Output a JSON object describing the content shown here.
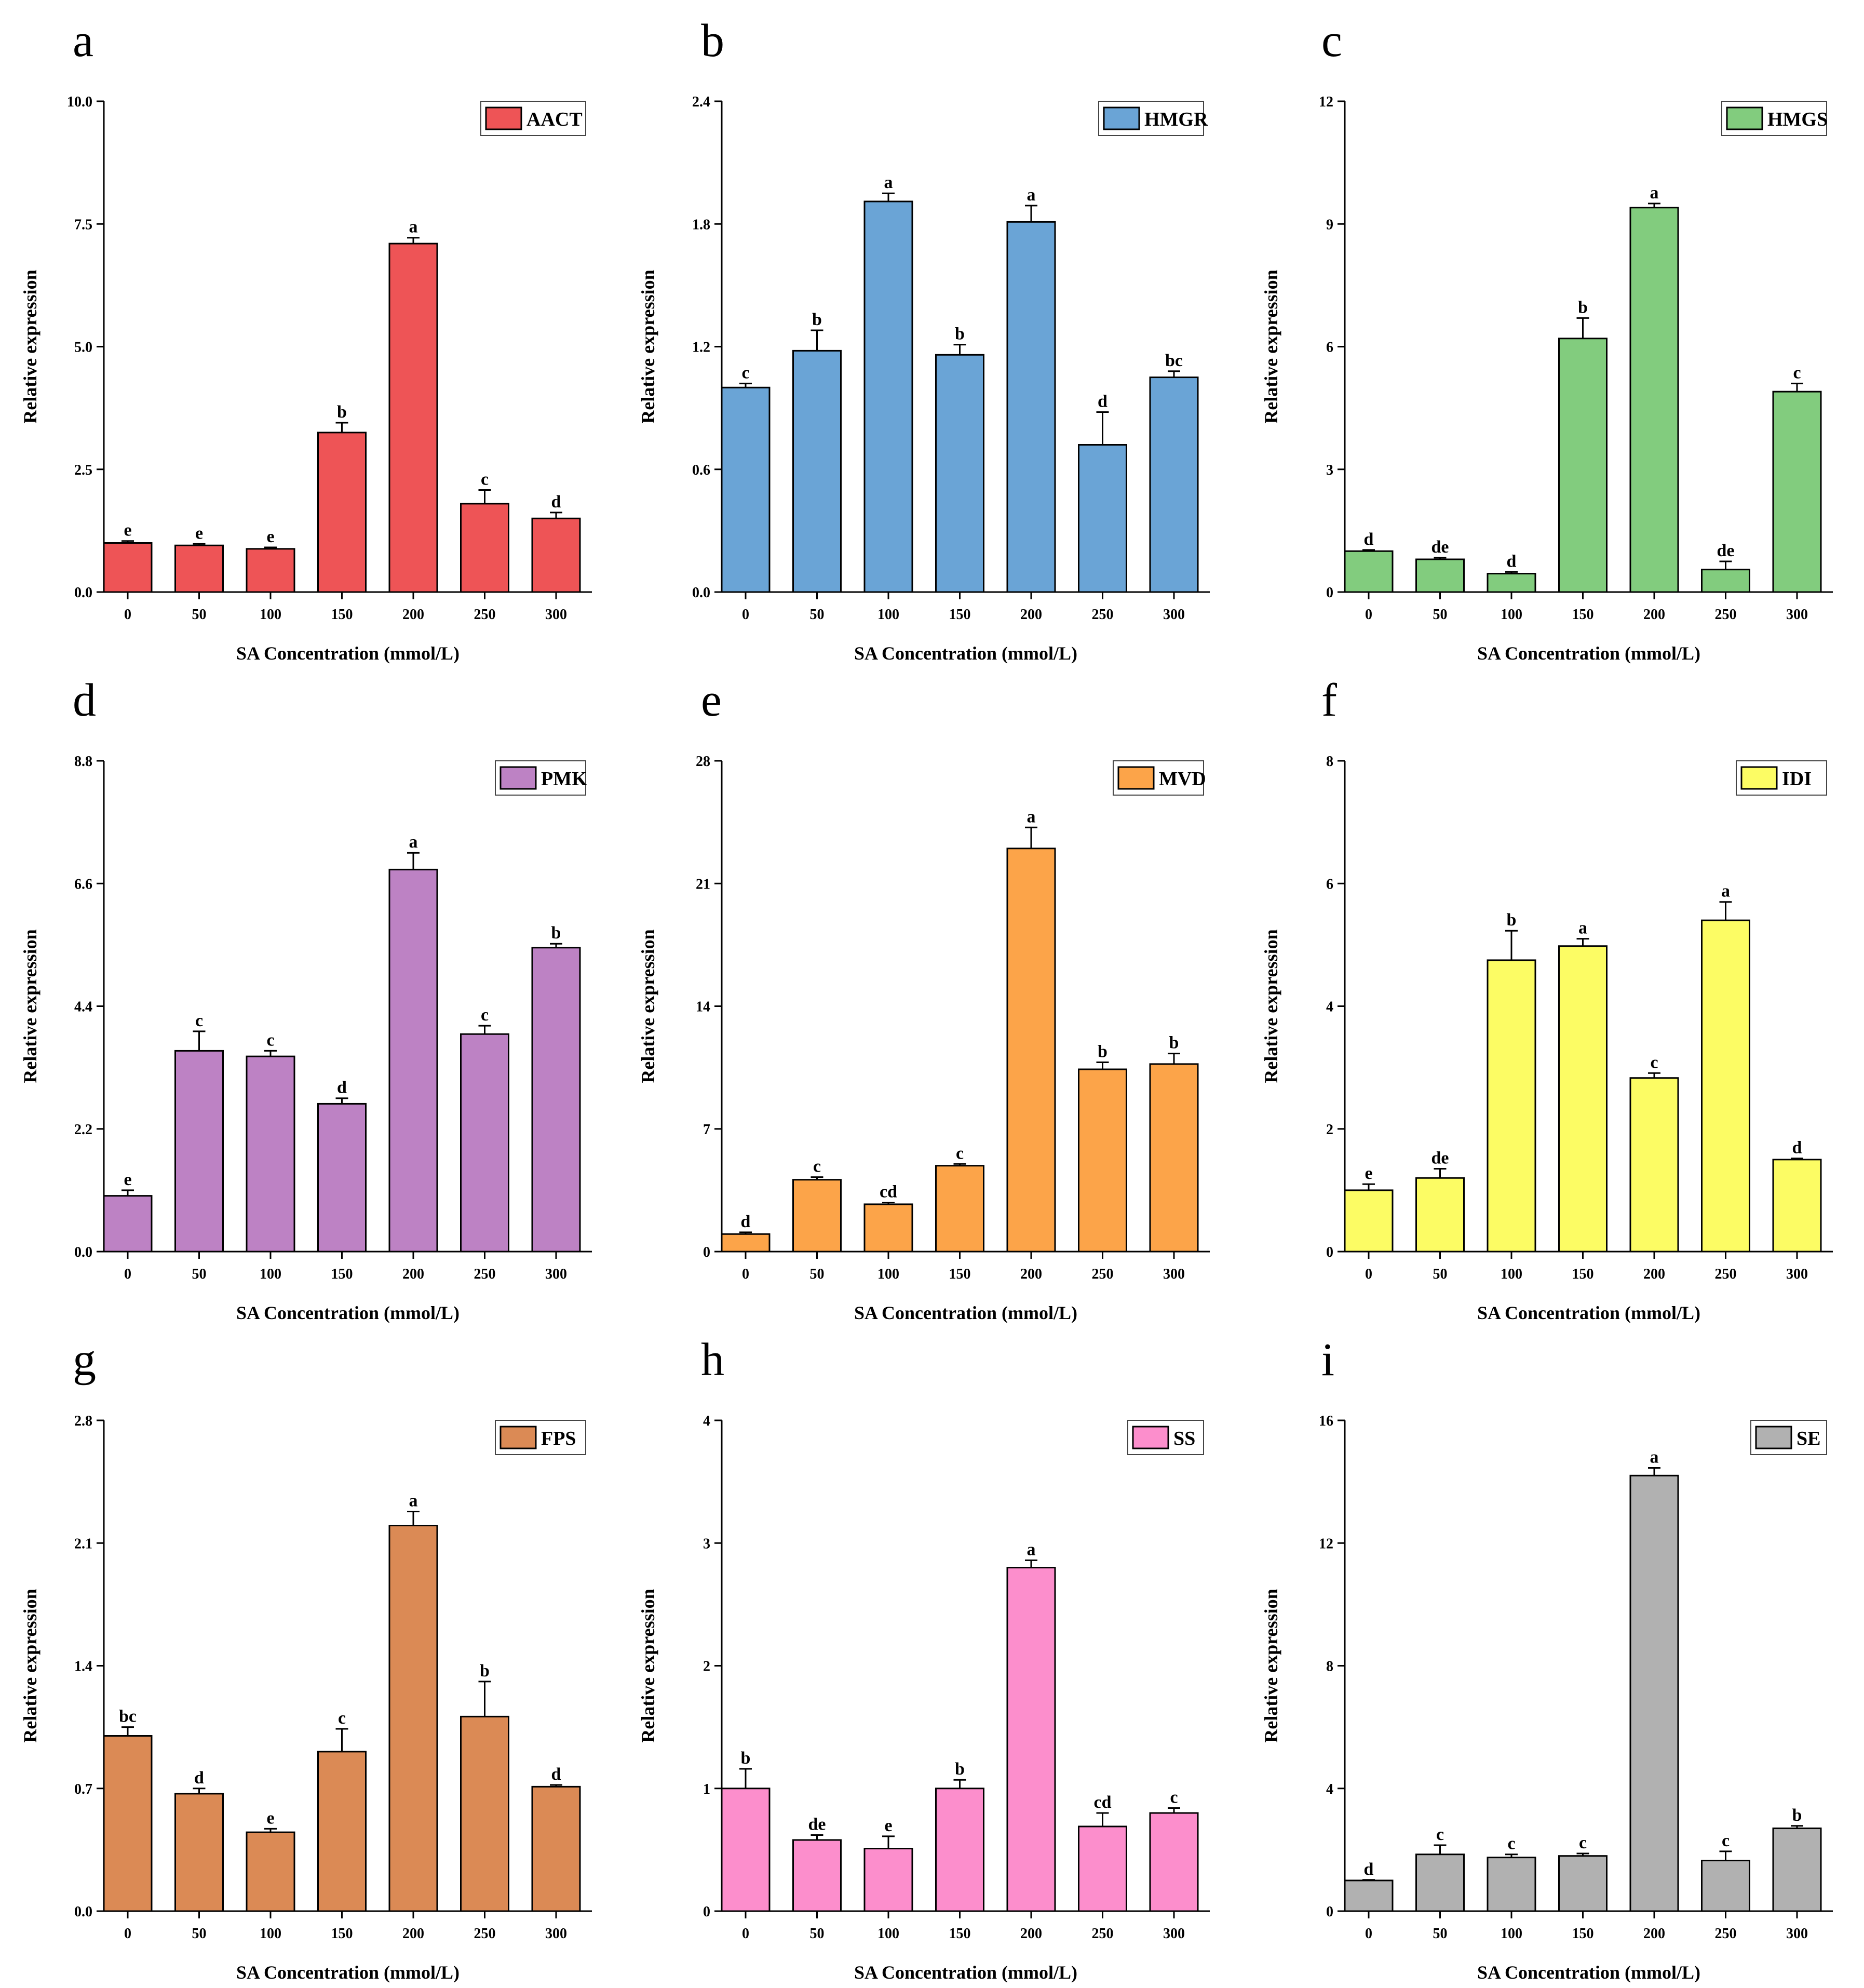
{
  "chart_data": [
    {
      "panel": "a",
      "type": "bar",
      "legend": "AACT",
      "color": "#EE5456",
      "categories": [
        "0",
        "50",
        "100",
        "150",
        "200",
        "250",
        "300"
      ],
      "values": [
        1.0,
        0.95,
        0.88,
        3.25,
        7.1,
        1.8,
        1.5
      ],
      "errors": [
        0.04,
        0.03,
        0.03,
        0.2,
        0.12,
        0.28,
        0.12
      ],
      "sig": [
        "e",
        "e",
        "e",
        "b",
        "a",
        "c",
        "d"
      ],
      "ylim": [
        0,
        10
      ],
      "yticks": [
        "0.0",
        "2.5",
        "5.0",
        "7.5",
        "10.0"
      ],
      "xlabel": "SA Concentration (mmol/L)",
      "ylabel": "Relative expression"
    },
    {
      "panel": "b",
      "type": "bar",
      "legend": "HMGR",
      "color": "#6AA4D6",
      "categories": [
        "0",
        "50",
        "100",
        "150",
        "200",
        "250",
        "300"
      ],
      "values": [
        1.0,
        1.18,
        1.91,
        1.16,
        1.81,
        0.72,
        1.05
      ],
      "errors": [
        0.02,
        0.1,
        0.04,
        0.05,
        0.08,
        0.16,
        0.03
      ],
      "sig": [
        "c",
        "b",
        "a",
        "b",
        "a",
        "d",
        "bc"
      ],
      "ylim": [
        0,
        2.4
      ],
      "yticks": [
        "0.0",
        "0.6",
        "1.2",
        "1.8",
        "2.4"
      ],
      "xlabel": "SA Concentration (mmol/L)",
      "ylabel": "Relative expression"
    },
    {
      "panel": "c",
      "type": "bar",
      "legend": "HMGS",
      "color": "#82CC7E",
      "categories": [
        "0",
        "50",
        "100",
        "150",
        "200",
        "250",
        "300"
      ],
      "values": [
        1.0,
        0.8,
        0.45,
        6.2,
        9.4,
        0.55,
        4.9
      ],
      "errors": [
        0.03,
        0.04,
        0.04,
        0.5,
        0.1,
        0.2,
        0.2
      ],
      "sig": [
        "d",
        "de",
        "d",
        "b",
        "a",
        "de",
        "c"
      ],
      "ylim": [
        0,
        12
      ],
      "yticks": [
        "0",
        "3",
        "6",
        "9",
        "12"
      ],
      "xlabel": "SA Concentration (mmol/L)",
      "ylabel": "Relative expression"
    },
    {
      "panel": "d",
      "type": "bar",
      "legend": "PMK",
      "color": "#BD82C4",
      "categories": [
        "0",
        "50",
        "100",
        "150",
        "200",
        "250",
        "300"
      ],
      "values": [
        1.0,
        3.6,
        3.5,
        2.65,
        6.85,
        3.9,
        5.45
      ],
      "errors": [
        0.1,
        0.35,
        0.1,
        0.1,
        0.3,
        0.15,
        0.07
      ],
      "sig": [
        "e",
        "c",
        "c",
        "d",
        "a",
        "c",
        "b"
      ],
      "ylim": [
        0,
        8.8
      ],
      "yticks": [
        "0.0",
        "2.2",
        "4.4",
        "6.6",
        "8.8"
      ],
      "xlabel": "SA Concentration (mmol/L)",
      "ylabel": "Relative expression"
    },
    {
      "panel": "e",
      "type": "bar",
      "legend": "MVD",
      "color": "#FCA449",
      "categories": [
        "0",
        "50",
        "100",
        "150",
        "200",
        "250",
        "300"
      ],
      "values": [
        1.0,
        4.1,
        2.7,
        4.9,
        23.0,
        10.4,
        10.7
      ],
      "errors": [
        0.1,
        0.15,
        0.1,
        0.1,
        1.2,
        0.4,
        0.6
      ],
      "sig": [
        "d",
        "c",
        "cd",
        "c",
        "a",
        "b",
        "b"
      ],
      "ylim": [
        0,
        28
      ],
      "yticks": [
        "0",
        "7",
        "14",
        "21",
        "28"
      ],
      "xlabel": "SA Concentration (mmol/L)",
      "ylabel": "Relative expression"
    },
    {
      "panel": "f",
      "type": "bar",
      "legend": "IDI",
      "color": "#FCFC64",
      "categories": [
        "0",
        "50",
        "100",
        "150",
        "200",
        "250",
        "300"
      ],
      "values": [
        1.0,
        1.2,
        4.75,
        4.98,
        2.83,
        5.4,
        1.5
      ],
      "errors": [
        0.1,
        0.15,
        0.48,
        0.12,
        0.08,
        0.3,
        0.02
      ],
      "sig": [
        "e",
        "de",
        "b",
        "a",
        "c",
        "a",
        "d"
      ],
      "ylim": [
        0,
        8
      ],
      "yticks": [
        "0",
        "2",
        "4",
        "6",
        "8"
      ],
      "xlabel": "SA Concentration (mmol/L)",
      "ylabel": "Relative expression"
    },
    {
      "panel": "g",
      "type": "bar",
      "legend": "FPS",
      "color": "#DB8A55",
      "categories": [
        "0",
        "50",
        "100",
        "150",
        "200",
        "250",
        "300"
      ],
      "values": [
        1.0,
        0.67,
        0.45,
        0.91,
        2.2,
        1.11,
        0.71
      ],
      "errors": [
        0.05,
        0.03,
        0.02,
        0.13,
        0.08,
        0.2,
        0.01
      ],
      "sig": [
        "bc",
        "d",
        "e",
        "c",
        "a",
        "b",
        "d"
      ],
      "ylim": [
        0,
        2.8
      ],
      "yticks": [
        "0.0",
        "0.7",
        "1.4",
        "2.1",
        "2.8"
      ],
      "xlabel": "SA Concentration (mmol/L)",
      "ylabel": "Relative expression"
    },
    {
      "panel": "h",
      "type": "bar",
      "legend": "SS",
      "color": "#FC8ECC",
      "categories": [
        "0",
        "50",
        "100",
        "150",
        "200",
        "250",
        "300"
      ],
      "values": [
        1.0,
        0.58,
        0.51,
        1.0,
        2.8,
        0.69,
        0.8
      ],
      "errors": [
        0.16,
        0.04,
        0.1,
        0.07,
        0.06,
        0.11,
        0.04
      ],
      "sig": [
        "b",
        "de",
        "e",
        "b",
        "a",
        "cd",
        "c"
      ],
      "ylim": [
        0,
        4
      ],
      "yticks": [
        "0",
        "1",
        "2",
        "3",
        "4"
      ],
      "xlabel": "SA Concentration (mmol/L)",
      "ylabel": "Relative expression"
    },
    {
      "panel": "i",
      "type": "bar",
      "legend": "SE",
      "color": "#B1B1B1",
      "categories": [
        "0",
        "50",
        "100",
        "150",
        "200",
        "250",
        "300"
      ],
      "values": [
        1.0,
        1.85,
        1.75,
        1.8,
        14.2,
        1.65,
        2.7
      ],
      "errors": [
        0.02,
        0.3,
        0.1,
        0.08,
        0.25,
        0.3,
        0.08
      ],
      "sig": [
        "d",
        "c",
        "c",
        "c",
        "a",
        "c",
        "b"
      ],
      "ylim": [
        0,
        16
      ],
      "yticks": [
        "0",
        "4",
        "8",
        "12",
        "16"
      ],
      "xlabel": "SA Concentration (mmol/L)",
      "ylabel": "Relative expression"
    }
  ]
}
